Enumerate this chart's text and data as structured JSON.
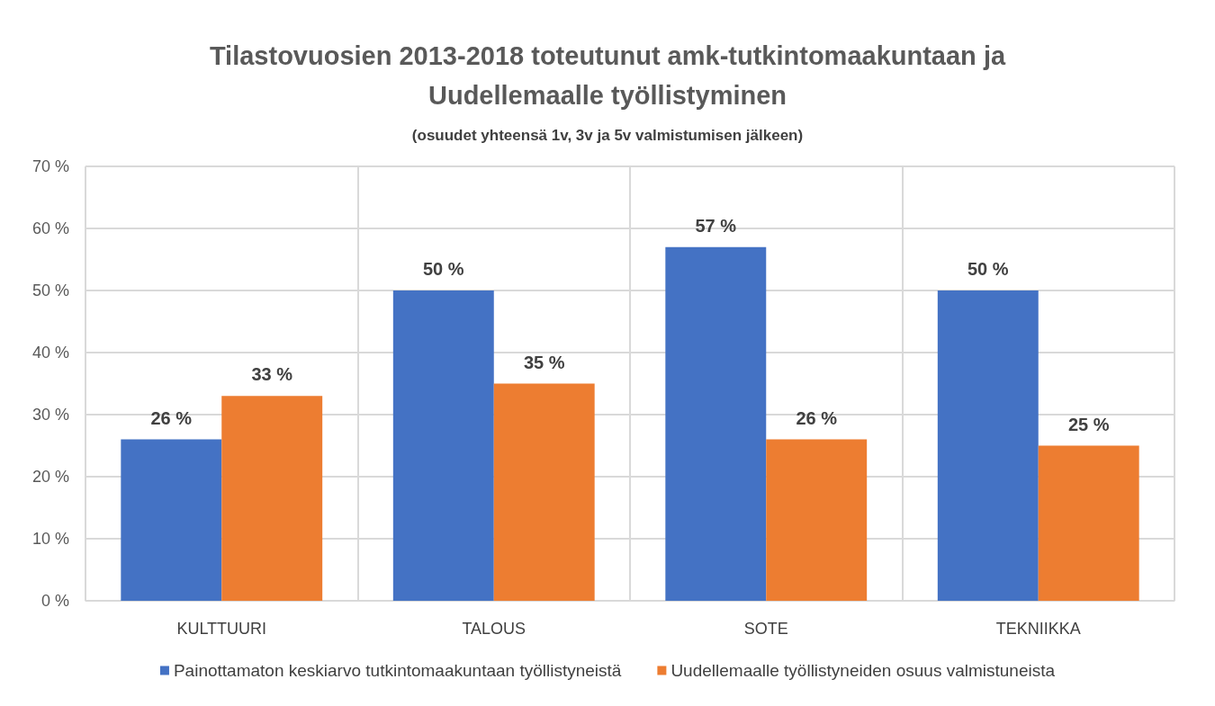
{
  "chart_data": {
    "type": "bar",
    "title": "Tilastovuosien 2013-2018 toteutunut amk-tutkintomaakuntaan ja\nUudellemaalle työllistyminen",
    "subtitle": "(osuudet yhteensä 1v, 3v ja 5v valmistumisen jälkeen)",
    "categories": [
      "KULTTUURI",
      "TALOUS",
      "SOTE",
      "TEKNIIKKA"
    ],
    "series": [
      {
        "name": "Painottamaton keskiarvo tutkintomaakuntaan työllistyneistä",
        "color": "#4472c4",
        "values": [
          26,
          50,
          57,
          50
        ],
        "value_labels": [
          "26 %",
          "50 %",
          "57 %",
          "50 %"
        ]
      },
      {
        "name": "Uudellemaalle työllistyneiden osuus valmistuneista",
        "color": "#ed7d31",
        "values": [
          33,
          35,
          26,
          25
        ],
        "value_labels": [
          "33 %",
          "35 %",
          "26 %",
          "25 %"
        ]
      }
    ],
    "ylim": [
      0,
      70
    ],
    "yticks": [
      {
        "value": 0,
        "label": "0 %"
      },
      {
        "value": 10,
        "label": "10 %"
      },
      {
        "value": 20,
        "label": "20 %"
      },
      {
        "value": 30,
        "label": "30 %"
      },
      {
        "value": 40,
        "label": "40 %"
      },
      {
        "value": 50,
        "label": "50 %"
      },
      {
        "value": 60,
        "label": "60 %"
      },
      {
        "value": 70,
        "label": "70 %"
      }
    ],
    "grid": true,
    "legend": "bottom"
  }
}
